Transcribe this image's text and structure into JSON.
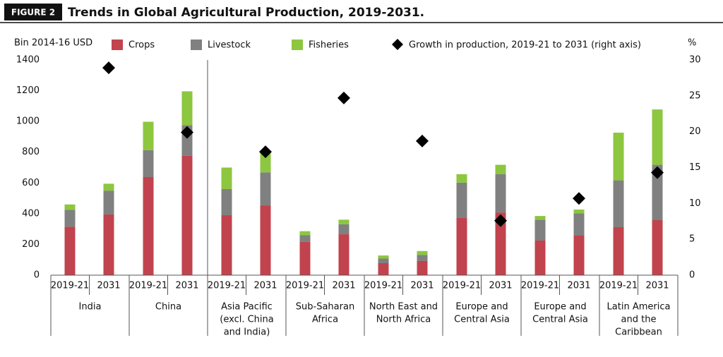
{
  "figure_label": "FIGURE 2",
  "chart_data": {
    "type": "bar",
    "stacked": true,
    "title": "Trends in Global Agricultural Production, 2019-2031.",
    "y_label": "Bin 2014-16 USD",
    "y2_label": "%",
    "categories": [
      "2019-21",
      "2031",
      "2019-21",
      "2031",
      "2019-21",
      "2031",
      "2019-21",
      "2031",
      "2019-21",
      "2031",
      "2019-21",
      "2031",
      "2019-21",
      "2031",
      "2019-21",
      "2031"
    ],
    "groups": [
      [
        "India"
      ],
      [
        "China"
      ],
      [
        "Asia Pacific",
        "(excl. China",
        "and India)"
      ],
      [
        "Sub-Saharan",
        "Africa"
      ],
      [
        "North East and",
        "North Africa"
      ],
      [
        "Europe and",
        "Central Asia"
      ],
      [
        "Europe and",
        "Central Asia"
      ],
      [
        "Latin America",
        "and the",
        "Caribbean"
      ]
    ],
    "series": [
      {
        "name": "Crops",
        "color": "#c1434d",
        "values": [
          315,
          395,
          638,
          776,
          390,
          454,
          216,
          266,
          78,
          92,
          372,
          408,
          225,
          257,
          312,
          358
        ]
      },
      {
        "name": "Livestock",
        "color": "#808080",
        "values": [
          110,
          155,
          175,
          200,
          170,
          215,
          45,
          65,
          30,
          40,
          230,
          250,
          135,
          145,
          305,
          360
        ]
      },
      {
        "name": "Fisheries",
        "color": "#8dc63f",
        "values": [
          35,
          45,
          185,
          220,
          140,
          130,
          25,
          30,
          20,
          25,
          55,
          60,
          25,
          25,
          310,
          360
        ]
      },
      {
        "name": "Growth in production, 2019-21 to 2031 (right axis)",
        "color": "#000000",
        "type": "scatter",
        "axis": "y2",
        "values": [
          28.9,
          19.9,
          17.2,
          24.7,
          18.7,
          7.6,
          10.7,
          14.3
        ]
      }
    ],
    "ylim": [
      0,
      1400
    ],
    "yticks": [
      0,
      200,
      400,
      600,
      800,
      1000,
      1200,
      1400
    ],
    "y2lim": [
      0,
      30
    ],
    "y2ticks": [
      0,
      5,
      10,
      15,
      20,
      25,
      30
    ]
  }
}
